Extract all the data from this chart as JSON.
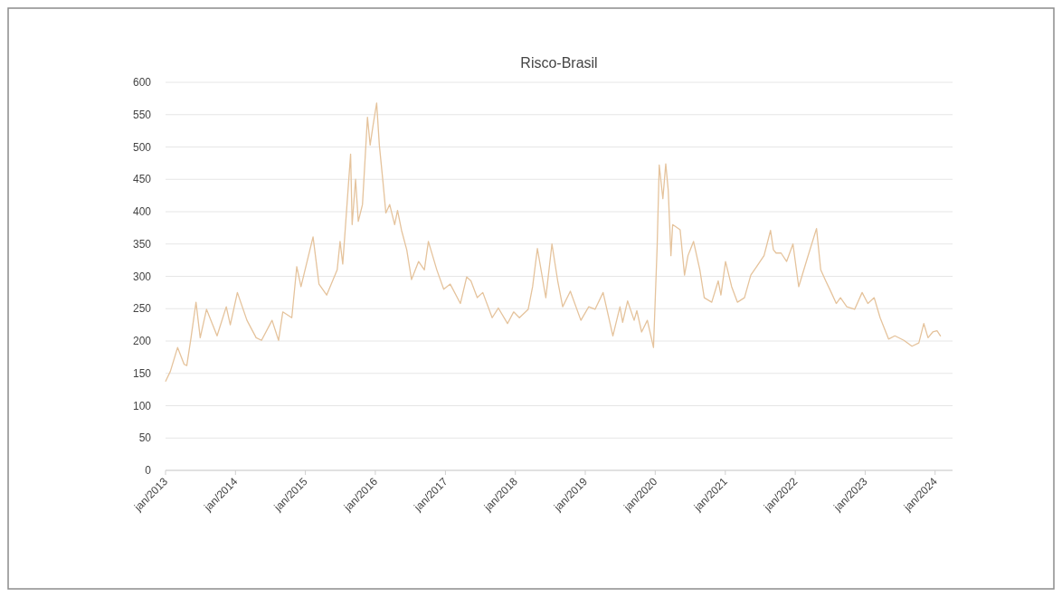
{
  "chart_data": {
    "type": "line",
    "title": "Risco-Brasil",
    "x": [
      "2013-01-02",
      "2013-01-26",
      "2013-03-05",
      "2013-04-08",
      "2013-04-22",
      "2013-05-14",
      "2013-06-09",
      "2013-07-01",
      "2013-08-03",
      "2013-09-27",
      "2013-11-14",
      "2013-12-05",
      "2014-01-11",
      "2014-03-02",
      "2014-04-19",
      "2014-05-17",
      "2014-07-11",
      "2014-08-14",
      "2014-09-05",
      "2014-10-22",
      "2014-11-17",
      "2014-12-09",
      "2015-02-10",
      "2015-03-13",
      "2015-04-22",
      "2015-06-16",
      "2015-07-01",
      "2015-07-15",
      "2015-08-25",
      "2015-09-02",
      "2015-09-20",
      "2015-10-04",
      "2015-10-26",
      "2015-11-21",
      "2015-12-05",
      "2015-12-20",
      "2016-01-08",
      "2016-01-22",
      "2016-02-10",
      "2016-02-25",
      "2016-03-16",
      "2016-04-11",
      "2016-04-26",
      "2016-05-17",
      "2016-06-13",
      "2016-07-08",
      "2016-08-14",
      "2016-09-13",
      "2016-10-04",
      "2016-11-17",
      "2016-12-23",
      "2017-01-26",
      "2017-03-20",
      "2017-04-22",
      "2017-05-14",
      "2017-06-16",
      "2017-07-15",
      "2017-09-02",
      "2017-10-04",
      "2017-11-21",
      "2017-12-23",
      "2018-01-22",
      "2018-03-09",
      "2018-04-01",
      "2018-04-26",
      "2018-06-09",
      "2018-07-11",
      "2018-08-10",
      "2018-09-05",
      "2018-10-15",
      "2018-12-09",
      "2019-01-19",
      "2019-02-21",
      "2019-04-04",
      "2019-05-25",
      "2019-07-01",
      "2019-07-15",
      "2019-08-10",
      "2019-09-13",
      "2019-09-27",
      "2019-10-22",
      "2019-11-21",
      "2019-12-23",
      "2020-01-11",
      "2020-01-22",
      "2020-02-10",
      "2020-02-25",
      "2020-03-09",
      "2020-03-23",
      "2020-04-01",
      "2020-05-10",
      "2020-06-02",
      "2020-06-20",
      "2020-07-19",
      "2020-08-21",
      "2020-09-13",
      "2020-10-22",
      "2020-11-25",
      "2020-12-09",
      "2021-01-02",
      "2021-02-03",
      "2021-03-05",
      "2021-04-11",
      "2021-05-14",
      "2021-06-13",
      "2021-07-22",
      "2021-08-25",
      "2021-09-09",
      "2021-09-23",
      "2021-10-19",
      "2021-11-17",
      "2021-12-20",
      "2022-01-19",
      "2022-03-05",
      "2022-04-22",
      "2022-05-14",
      "2022-06-09",
      "2022-07-08",
      "2022-08-03",
      "2022-08-25",
      "2022-09-27",
      "2022-11-07",
      "2022-12-16",
      "2023-01-15",
      "2023-02-17",
      "2023-03-20",
      "2023-05-03",
      "2023-06-05",
      "2023-07-22",
      "2023-09-02",
      "2023-10-08",
      "2023-11-03",
      "2023-11-25",
      "2023-12-20",
      "2024-01-11",
      "2024-01-29"
    ],
    "series": [
      {
        "color": "#e5c39c",
        "values": [
          138,
          153,
          190,
          164,
          162,
          205,
          260,
          205,
          249,
          208,
          253,
          225,
          275,
          232,
          205,
          201,
          232,
          201,
          245,
          236,
          315,
          284,
          361,
          288,
          271,
          310,
          354,
          319,
          489,
          380,
          450,
          385,
          411,
          546,
          503,
          533,
          568,
          503,
          446,
          398,
          411,
          380,
          402,
          371,
          341,
          295,
          323,
          310,
          354,
          310,
          280,
          288,
          258,
          299,
          293,
          267,
          275,
          236,
          251,
          227,
          245,
          236,
          249,
          284,
          343,
          267,
          350,
          293,
          253,
          277,
          232,
          253,
          249,
          275,
          208,
          253,
          229,
          262,
          232,
          247,
          214,
          232,
          190,
          345,
          472,
          420,
          474,
          433,
          332,
          380,
          372,
          302,
          332,
          354,
          310,
          267,
          260,
          293,
          271,
          323,
          284,
          260,
          267,
          302,
          315,
          332,
          371,
          341,
          336,
          336,
          323,
          350,
          284,
          328,
          374,
          310,
          293,
          275,
          258,
          267,
          253,
          249,
          275,
          258,
          267,
          236,
          203,
          208,
          201,
          192,
          197,
          227,
          205,
          214,
          216,
          208
        ]
      }
    ],
    "xlim": [
      "2013-01-01",
      "2024-04-01"
    ],
    "xticks": [
      {
        "value": "2013-01-01",
        "label": "jan/2013"
      },
      {
        "value": "2014-01-01",
        "label": "jan/2014"
      },
      {
        "value": "2015-01-01",
        "label": "jan/2015"
      },
      {
        "value": "2016-01-01",
        "label": "jan/2016"
      },
      {
        "value": "2017-01-01",
        "label": "jan/2017"
      },
      {
        "value": "2018-01-01",
        "label": "jan/2018"
      },
      {
        "value": "2019-01-01",
        "label": "jan/2019"
      },
      {
        "value": "2020-01-01",
        "label": "jan/2020"
      },
      {
        "value": "2021-01-01",
        "label": "jan/2021"
      },
      {
        "value": "2022-01-01",
        "label": "jan/2022"
      },
      {
        "value": "2023-01-01",
        "label": "jan/2023"
      },
      {
        "value": "2024-01-01",
        "label": "jan/2024"
      }
    ],
    "ylim": [
      0,
      600
    ],
    "yticks": [
      0,
      50,
      100,
      150,
      200,
      250,
      300,
      350,
      400,
      450,
      500,
      550,
      600
    ],
    "grid": "y",
    "marker": "none",
    "line_style": "solid"
  }
}
